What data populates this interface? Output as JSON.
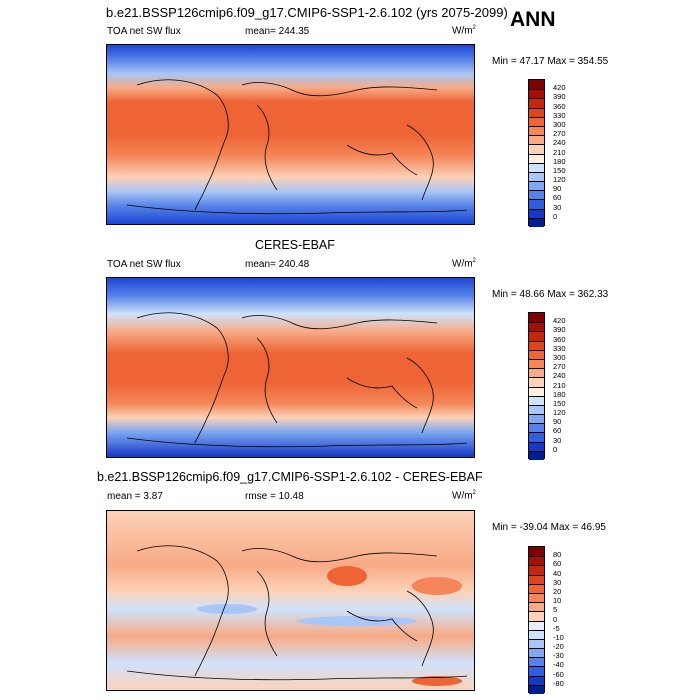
{
  "season": "ANN",
  "panels": [
    {
      "id": "model",
      "header": "b.e21.BSSP126cmip6.f09_g17.CMIP6-SSP1-2.6.102 (yrs 2075-2099)",
      "left_label": "TOA net SW flux",
      "center_label": "mean= 244.35",
      "units_label": "W/m",
      "units_sup": "2",
      "minmax": "Min = 47.17 Max = 354.55",
      "colorbar": {
        "ticks": [
          "420",
          "390",
          "360",
          "330",
          "300",
          "270",
          "240",
          "210",
          "180",
          "150",
          "120",
          "90",
          "60",
          "30",
          "0"
        ],
        "colors": [
          "#7f0000",
          "#a50f05",
          "#c8260a",
          "#e0441d",
          "#ee6434",
          "#f48659",
          "#f8aa85",
          "#fcd2b8",
          "#fdf0e2",
          "#cfe2fb",
          "#a8c6f7",
          "#7fa8f1",
          "#5683e8",
          "#2f5fde",
          "#1438c8",
          "#001f8f"
        ]
      }
    },
    {
      "id": "obs",
      "header": "CERES-EBAF",
      "left_label": "TOA net SW flux",
      "center_label": "mean= 240.48",
      "units_label": "W/m",
      "units_sup": "2",
      "minmax": "Min = 48.66 Max = 362.33",
      "colorbar": {
        "ticks": [
          "420",
          "390",
          "360",
          "330",
          "300",
          "270",
          "240",
          "210",
          "180",
          "150",
          "120",
          "90",
          "60",
          "30",
          "0"
        ],
        "colors": [
          "#7f0000",
          "#a50f05",
          "#c8260a",
          "#e0441d",
          "#ee6434",
          "#f48659",
          "#f8aa85",
          "#fcd2b8",
          "#fdf0e2",
          "#cfe2fb",
          "#a8c6f7",
          "#7fa8f1",
          "#5683e8",
          "#2f5fde",
          "#1438c8",
          "#001f8f"
        ]
      }
    },
    {
      "id": "diff",
      "header": "b.e21.BSSP126cmip6.f09_g17.CMIP6-SSP1-2.6.102 - CERES-EBAF",
      "left_label": "mean =  3.87",
      "center_label": "rmse =  10.48",
      "units_label": "W/m",
      "units_sup": "2",
      "minmax": "Min = -39.04 Max = 46.95",
      "colorbar": {
        "ticks": [
          "80",
          "60",
          "40",
          "30",
          "20",
          "10",
          "5",
          "0",
          "-5",
          "-10",
          "-20",
          "-30",
          "-40",
          "-60",
          "-80"
        ],
        "colors": [
          "#7f0000",
          "#a50f05",
          "#c8260a",
          "#e0441d",
          "#ee6434",
          "#f48659",
          "#f8aa85",
          "#fcd2b8",
          "#e6eefb",
          "#cfe2fb",
          "#a8c6f7",
          "#7fa8f1",
          "#5683e8",
          "#2f5fde",
          "#1438c8",
          "#001f8f"
        ]
      }
    }
  ],
  "chart_data": [
    {
      "type": "heatmap",
      "title": "b.e21.BSSP126cmip6.f09_g17.CMIP6-SSP1-2.6.102 (yrs 2075-2099)",
      "variable": "TOA net SW flux",
      "units": "W/m2",
      "mean": 244.35,
      "min": 47.17,
      "max": 354.55,
      "color_levels": [
        0,
        30,
        60,
        90,
        120,
        150,
        180,
        210,
        240,
        270,
        300,
        330,
        360,
        390,
        420
      ],
      "map": "global lat-lon, equatorial maximum near 300-330, decreasing poleward to < 60"
    },
    {
      "type": "heatmap",
      "title": "CERES-EBAF",
      "variable": "TOA net SW flux",
      "units": "W/m2",
      "mean": 240.48,
      "min": 48.66,
      "max": 362.33,
      "color_levels": [
        0,
        30,
        60,
        90,
        120,
        150,
        180,
        210,
        240,
        270,
        300,
        330,
        360,
        390,
        420
      ]
    },
    {
      "type": "heatmap",
      "title": "b.e21.BSSP126cmip6.f09_g17.CMIP6-SSP1-2.6.102 - CERES-EBAF",
      "units": "W/m2",
      "mean": 3.87,
      "rmse": 10.48,
      "min": -39.04,
      "max": 46.95,
      "color_levels": [
        -80,
        -60,
        -40,
        -30,
        -20,
        -10,
        -5,
        0,
        5,
        10,
        20,
        30,
        40,
        60,
        80
      ]
    }
  ]
}
